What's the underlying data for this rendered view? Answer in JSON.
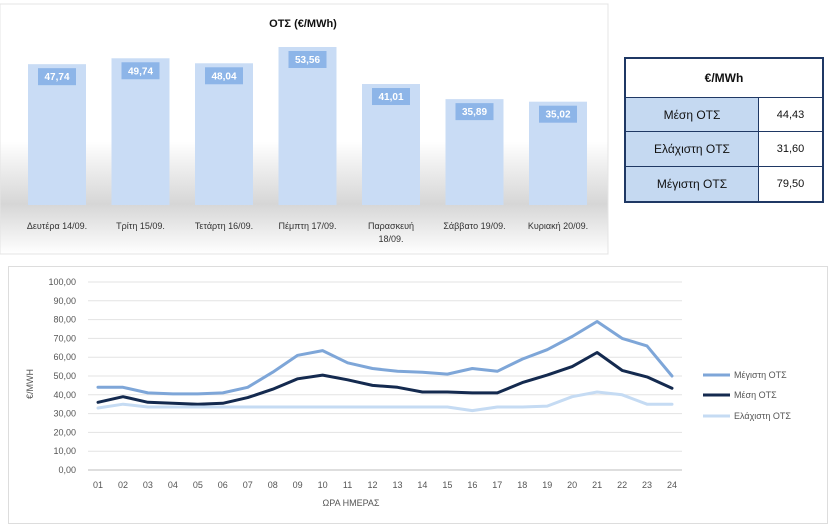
{
  "chart_data": [
    {
      "type": "bar",
      "title": "ΟΤΣ (€/MWh)",
      "categories": [
        "Δευτέρα 14/09.",
        "Τρίτη 15/09.",
        "Τετάρτη 16/09.",
        "Πέμπτη 17/09.",
        "Παρασκευή 18/09.",
        "Σάββατο 19/09.",
        "Κυριακή 20/09."
      ],
      "category_lines": [
        [
          "Δευτέρα 14/09."
        ],
        [
          "Τρίτη 15/09."
        ],
        [
          "Τετάρτη 16/09."
        ],
        [
          "Πέμπτη 17/09."
        ],
        [
          "Παρασκευή",
          "18/09."
        ],
        [
          "Σάββατο 19/09."
        ],
        [
          "Κυριακή 20/09."
        ]
      ],
      "values": [
        47.74,
        49.74,
        48.04,
        53.56,
        41.01,
        35.89,
        35.02
      ],
      "value_labels": [
        "47,74",
        "49,74",
        "48,04",
        "53,56",
        "41,01",
        "35,89",
        "35,02"
      ],
      "colors": {
        "bar": "#c9dcf5",
        "label_bg": "#8db5e8",
        "label_text": "#ffffff"
      }
    },
    {
      "type": "table",
      "header": "€/MWh",
      "rows": [
        {
          "label": "Μέση ΟΤΣ",
          "value": "44,43"
        },
        {
          "label": "Ελάχιστη ΟΤΣ",
          "value": "31,60"
        },
        {
          "label": "Μέγιστη ΟΤΣ",
          "value": "79,50"
        }
      ],
      "colors": {
        "label_bg": "#c5d9f1",
        "border": "#1f3864"
      }
    },
    {
      "type": "line",
      "xlabel": "ΩΡΑ ΗΜΕΡΑΣ",
      "ylabel": "€/MWH",
      "ylim": [
        0,
        100
      ],
      "y_ticks": [
        "0,00",
        "10,00",
        "20,00",
        "30,00",
        "40,00",
        "50,00",
        "60,00",
        "70,00",
        "80,00",
        "90,00",
        "100,00"
      ],
      "x": [
        "01",
        "02",
        "03",
        "04",
        "05",
        "06",
        "07",
        "08",
        "09",
        "10",
        "11",
        "12",
        "13",
        "14",
        "15",
        "16",
        "17",
        "18",
        "19",
        "20",
        "21",
        "22",
        "23",
        "24"
      ],
      "grid": true,
      "legend_position": "right",
      "series": [
        {
          "name": "Μέγιστη ΟΤΣ",
          "color": "#7ea6d8",
          "values": [
            44,
            44,
            41,
            40.5,
            40.5,
            41,
            44,
            52,
            61,
            63.5,
            57,
            54,
            52.5,
            52,
            51,
            54,
            52.5,
            59,
            64,
            71,
            79,
            70,
            66,
            50
          ]
        },
        {
          "name": "Μέση ΟΤΣ",
          "color": "#142a4f",
          "values": [
            36,
            39,
            36,
            35.5,
            35,
            35.5,
            38.5,
            43,
            48.5,
            50.5,
            48,
            45,
            44,
            41.5,
            41.5,
            41,
            41,
            46.5,
            50.5,
            55,
            62.5,
            53,
            49.5,
            43.5
          ]
        },
        {
          "name": "Ελάχιστη ΟΤΣ",
          "color": "#c5dbf3",
          "values": [
            33,
            35,
            33.5,
            33.5,
            33.5,
            33.5,
            33.5,
            33.5,
            33.5,
            33.5,
            33.5,
            33.5,
            33.5,
            33.5,
            33.5,
            31.6,
            33.5,
            33.5,
            34,
            39,
            41.5,
            40,
            35,
            35
          ]
        }
      ]
    }
  ]
}
